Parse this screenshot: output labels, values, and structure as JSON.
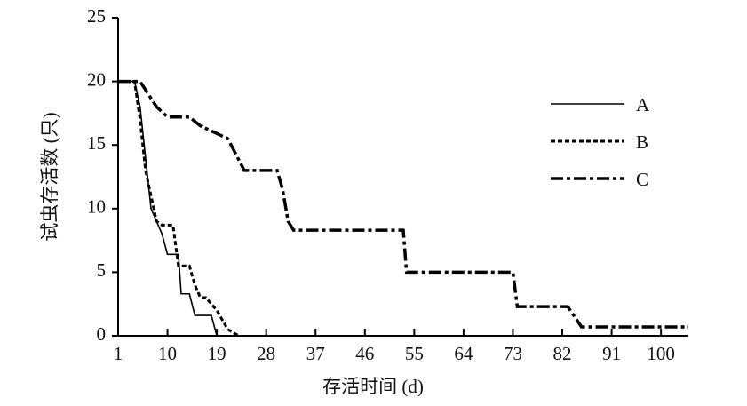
{
  "chart_data": {
    "type": "line",
    "xlabel": "存活时间 (d)",
    "ylabel": "试虫存活数 (只)",
    "xlim": [
      1,
      105
    ],
    "xticks": [
      1,
      10,
      19,
      28,
      37,
      46,
      55,
      64,
      73,
      82,
      91,
      100
    ],
    "ylim": [
      0,
      25
    ],
    "yticks": [
      0,
      5,
      10,
      15,
      20,
      25
    ],
    "legend": "upper right",
    "series": [
      {
        "name": "A",
        "color": "#000000",
        "dash": "solid",
        "x": [
          1,
          4,
          5,
          7,
          9,
          10,
          12,
          12.5,
          14,
          15,
          18,
          19,
          22
        ],
        "values": [
          20,
          20,
          18,
          10,
          8,
          6.4,
          6.4,
          3.3,
          3.3,
          1.6,
          1.6,
          0,
          0
        ]
      },
      {
        "name": "B",
        "color": "#000000",
        "dash": "dotted",
        "x": [
          1,
          4,
          5,
          6,
          7,
          8,
          9,
          11,
          12,
          14,
          15,
          16,
          17,
          19,
          21,
          23
        ],
        "values": [
          20,
          20,
          17,
          13,
          11,
          9,
          8.7,
          8.7,
          5.5,
          5.5,
          4,
          3,
          3,
          2,
          0.5,
          0
        ]
      },
      {
        "name": "C",
        "color": "#000000",
        "dash": "dashdot",
        "x": [
          1,
          5,
          8,
          10,
          14,
          16,
          21,
          24,
          26,
          30,
          31,
          32,
          33,
          53,
          53.6,
          73,
          73.8,
          83,
          85.5,
          105
        ],
        "values": [
          20,
          20,
          18,
          17.2,
          17.2,
          16.5,
          15.5,
          13,
          13,
          13,
          11.5,
          9,
          8.3,
          8.3,
          5,
          5,
          2.3,
          2.3,
          0.7,
          0.7
        ]
      }
    ]
  }
}
